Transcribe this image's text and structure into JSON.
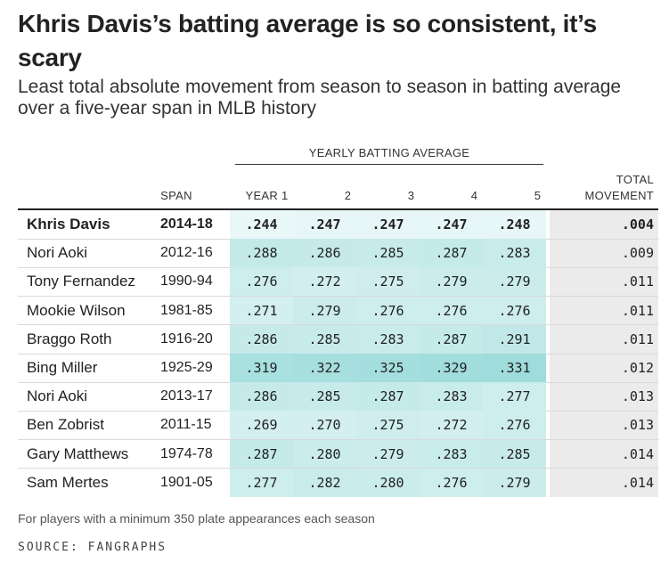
{
  "title": "Khris Davis’s batting average is so consistent, it’s scary",
  "subtitle": "Least total absolute movement from season to season in batting average over a five-year span in MLB history",
  "chart_data": {
    "type": "table",
    "group_header": "YEARLY BATTING AVERAGE",
    "columns": [
      "SPAN",
      "YEAR 1",
      "2",
      "3",
      "4",
      "5",
      "TOTAL MOVEMENT"
    ],
    "total_header_line1": "TOTAL",
    "total_header_line2": "MOVEMENT",
    "rows": [
      {
        "name": "Khris Davis",
        "span": "2014-18",
        "values": [
          ".244",
          ".247",
          ".247",
          ".247",
          ".248"
        ],
        "nums": [
          0.244,
          0.247,
          0.247,
          0.247,
          0.248
        ],
        "total": ".004",
        "highlight": true
      },
      {
        "name": "Nori Aoki",
        "span": "2012-16",
        "values": [
          ".288",
          ".286",
          ".285",
          ".287",
          ".283"
        ],
        "nums": [
          0.288,
          0.286,
          0.285,
          0.287,
          0.283
        ],
        "total": ".009"
      },
      {
        "name": "Tony Fernandez",
        "span": "1990-94",
        "values": [
          ".276",
          ".272",
          ".275",
          ".279",
          ".279"
        ],
        "nums": [
          0.276,
          0.272,
          0.275,
          0.279,
          0.279
        ],
        "total": ".011"
      },
      {
        "name": "Mookie Wilson",
        "span": "1981-85",
        "values": [
          ".271",
          ".279",
          ".276",
          ".276",
          ".276"
        ],
        "nums": [
          0.271,
          0.279,
          0.276,
          0.276,
          0.276
        ],
        "total": ".011"
      },
      {
        "name": "Braggo Roth",
        "span": "1916-20",
        "values": [
          ".286",
          ".285",
          ".283",
          ".287",
          ".291"
        ],
        "nums": [
          0.286,
          0.285,
          0.283,
          0.287,
          0.291
        ],
        "total": ".011"
      },
      {
        "name": "Bing Miller",
        "span": "1925-29",
        "values": [
          ".319",
          ".322",
          ".325",
          ".329",
          ".331"
        ],
        "nums": [
          0.319,
          0.322,
          0.325,
          0.329,
          0.331
        ],
        "total": ".012"
      },
      {
        "name": "Nori Aoki",
        "span": "2013-17",
        "values": [
          ".286",
          ".285",
          ".287",
          ".283",
          ".277"
        ],
        "nums": [
          0.286,
          0.285,
          0.287,
          0.283,
          0.277
        ],
        "total": ".013"
      },
      {
        "name": "Ben Zobrist",
        "span": "2011-15",
        "values": [
          ".269",
          ".270",
          ".275",
          ".272",
          ".276"
        ],
        "nums": [
          0.269,
          0.27,
          0.275,
          0.272,
          0.276
        ],
        "total": ".013"
      },
      {
        "name": "Gary Matthews",
        "span": "1974-78",
        "values": [
          ".287",
          ".280",
          ".279",
          ".283",
          ".285"
        ],
        "nums": [
          0.287,
          0.28,
          0.279,
          0.283,
          0.285
        ],
        "total": ".014"
      },
      {
        "name": "Sam Mertes",
        "span": "1901-05",
        "values": [
          ".277",
          ".282",
          ".280",
          ".276",
          ".279"
        ],
        "nums": [
          0.277,
          0.282,
          0.28,
          0.276,
          0.279
        ],
        "total": ".014"
      }
    ],
    "color_scale": {
      "low": "#eaf7f7",
      "high": "#9fdcdc",
      "min": 0.244,
      "max": 0.331
    },
    "total_column_color": "#ebebeb"
  },
  "note": "For players with a minimum 350 plate appearances each season",
  "source": "SOURCE: FANGRAPHS"
}
